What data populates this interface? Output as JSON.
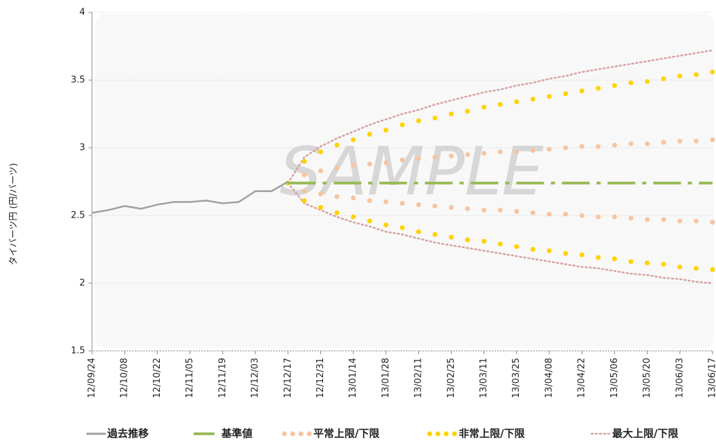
{
  "chart_data": {
    "type": "line",
    "y_label": "タイバーツ円 (円/バーツ)",
    "watermark": "SAMPLE",
    "categories": [
      "12/09/24",
      null,
      "12/10/08",
      null,
      "12/10/22",
      null,
      "12/11/05",
      null,
      "12/11/19",
      null,
      "12/12/03",
      null,
      "12/12/17",
      null,
      "12/12/31",
      null,
      "13/01/14",
      null,
      "13/01/28",
      null,
      "13/02/11",
      null,
      "13/02/25",
      null,
      "13/03/11",
      null,
      "13/03/25",
      null,
      "13/04/08",
      null,
      "13/04/22",
      null,
      "13/05/06",
      null,
      "13/05/20",
      null,
      "13/06/03",
      null,
      "13/06/17"
    ],
    "ylim": [
      1.5,
      4
    ],
    "yticks": [
      1.5,
      2,
      2.5,
      3,
      3.5,
      4
    ],
    "grid": true,
    "series": [
      {
        "name": "過去推移",
        "color": "#a0a0a0",
        "style": "line",
        "values": [
          2.52,
          2.54,
          2.57,
          2.55,
          2.58,
          2.6,
          2.6,
          2.61,
          2.59,
          2.6,
          2.68,
          2.68,
          2.75,
          null,
          null,
          null,
          null,
          null,
          null,
          null,
          null,
          null,
          null,
          null,
          null,
          null,
          null,
          null,
          null,
          null,
          null,
          null,
          null,
          null,
          null,
          null,
          null,
          null,
          null
        ]
      },
      {
        "name": "基準値",
        "color": "#9bbb59",
        "style": "dashdot",
        "values": [
          null,
          null,
          null,
          null,
          null,
          null,
          null,
          null,
          null,
          null,
          null,
          null,
          2.74,
          2.74,
          2.74,
          2.74,
          2.74,
          2.74,
          2.74,
          2.74,
          2.74,
          2.74,
          2.74,
          2.74,
          2.74,
          2.74,
          2.74,
          2.74,
          2.74,
          2.74,
          2.74,
          2.74,
          2.74,
          2.74,
          2.74,
          2.74,
          2.74,
          2.74,
          2.74
        ]
      },
      {
        "name": "平常上限/下限",
        "color": "#f8c4a0",
        "style": "dots",
        "values": [
          null,
          null,
          null,
          null,
          null,
          null,
          null,
          null,
          null,
          null,
          null,
          null,
          2.74,
          2.8,
          2.83,
          2.85,
          2.87,
          2.88,
          2.89,
          2.91,
          2.92,
          2.93,
          2.94,
          2.95,
          2.96,
          2.97,
          2.97,
          2.98,
          2.99,
          3.0,
          3.01,
          3.01,
          3.02,
          3.03,
          3.03,
          3.04,
          3.05,
          3.05,
          3.06
        ]
      },
      {
        "color": "#f8c4a0",
        "style": "dots",
        "values": [
          null,
          null,
          null,
          null,
          null,
          null,
          null,
          null,
          null,
          null,
          null,
          null,
          2.74,
          2.68,
          2.66,
          2.64,
          2.63,
          2.61,
          2.6,
          2.59,
          2.58,
          2.57,
          2.56,
          2.55,
          2.54,
          2.54,
          2.53,
          2.52,
          2.51,
          2.51,
          2.5,
          2.49,
          2.49,
          2.48,
          2.47,
          2.47,
          2.46,
          2.46,
          2.45
        ]
      },
      {
        "name": "非常上限/下限",
        "color": "#ffd200",
        "style": "dots",
        "values": [
          null,
          null,
          null,
          null,
          null,
          null,
          null,
          null,
          null,
          null,
          null,
          null,
          2.74,
          2.9,
          2.97,
          3.02,
          3.06,
          3.1,
          3.13,
          3.17,
          3.2,
          3.22,
          3.25,
          3.27,
          3.3,
          3.32,
          3.34,
          3.36,
          3.38,
          3.4,
          3.42,
          3.44,
          3.46,
          3.48,
          3.49,
          3.51,
          3.53,
          3.54,
          3.56
        ]
      },
      {
        "color": "#ffd200",
        "style": "dots",
        "values": [
          null,
          null,
          null,
          null,
          null,
          null,
          null,
          null,
          null,
          null,
          null,
          null,
          2.74,
          2.61,
          2.56,
          2.52,
          2.49,
          2.46,
          2.43,
          2.41,
          2.38,
          2.36,
          2.34,
          2.32,
          2.31,
          2.29,
          2.27,
          2.25,
          2.24,
          2.22,
          2.21,
          2.19,
          2.18,
          2.16,
          2.15,
          2.14,
          2.12,
          2.11,
          2.1
        ]
      },
      {
        "name": "最大上限/下限",
        "color": "#d8a0a0",
        "style": "dotted",
        "values": [
          null,
          null,
          null,
          null,
          null,
          null,
          null,
          null,
          null,
          null,
          null,
          null,
          2.74,
          2.93,
          3.01,
          3.07,
          3.12,
          3.17,
          3.21,
          3.25,
          3.28,
          3.32,
          3.35,
          3.38,
          3.41,
          3.43,
          3.46,
          3.48,
          3.51,
          3.53,
          3.56,
          3.58,
          3.6,
          3.62,
          3.64,
          3.66,
          3.68,
          3.7,
          3.72
        ]
      },
      {
        "color": "#d8a0a0",
        "style": "dotted",
        "values": [
          null,
          null,
          null,
          null,
          null,
          null,
          null,
          null,
          null,
          null,
          null,
          null,
          2.74,
          2.59,
          2.54,
          2.49,
          2.45,
          2.42,
          2.38,
          2.36,
          2.33,
          2.3,
          2.28,
          2.26,
          2.24,
          2.22,
          2.2,
          2.18,
          2.16,
          2.14,
          2.12,
          2.11,
          2.09,
          2.07,
          2.06,
          2.04,
          2.03,
          2.01,
          2.0
        ]
      }
    ]
  }
}
